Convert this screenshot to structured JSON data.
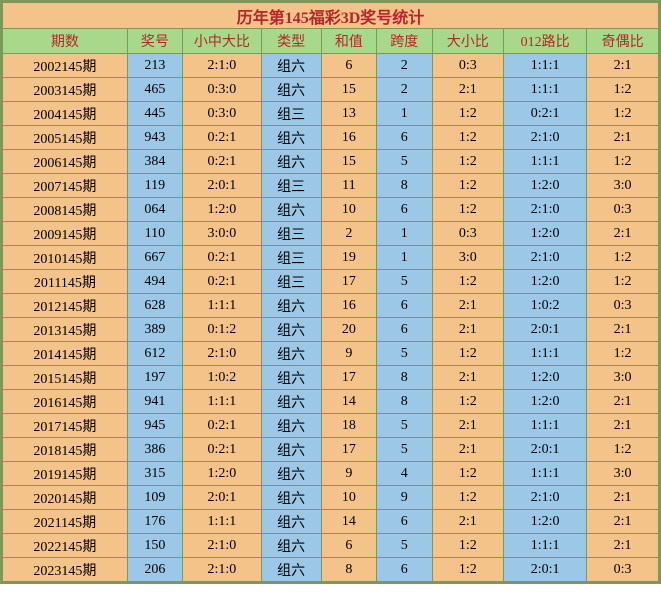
{
  "title": "历年第145福彩3D奖号统计",
  "columns": [
    {
      "label": "期数",
      "key": "period",
      "cls": "col-orange",
      "width": "col-period"
    },
    {
      "label": "奖号",
      "key": "num",
      "cls": "col-blue",
      "width": "col-num"
    },
    {
      "label": "小中大比",
      "key": "ratio1",
      "cls": "col-orange",
      "width": "col-ratio1"
    },
    {
      "label": "类型",
      "key": "type",
      "cls": "col-blue",
      "width": "col-type"
    },
    {
      "label": "和值",
      "key": "sum",
      "cls": "col-orange",
      "width": "col-sum"
    },
    {
      "label": "跨度",
      "key": "span",
      "cls": "col-blue",
      "width": "col-span"
    },
    {
      "label": "大小比",
      "key": "ratio2",
      "cls": "col-orange",
      "width": "col-ratio2"
    },
    {
      "label": "012路比",
      "key": "ratio3",
      "cls": "col-blue",
      "width": "col-ratio3"
    },
    {
      "label": "奇偶比",
      "key": "ratio4",
      "cls": "col-orange",
      "width": "col-ratio4"
    }
  ],
  "rows": [
    {
      "period": "2002145期",
      "num": "213",
      "ratio1": "2:1:0",
      "type": "组六",
      "sum": "6",
      "span": "2",
      "ratio2": "0:3",
      "ratio3": "1:1:1",
      "ratio4": "2:1"
    },
    {
      "period": "2003145期",
      "num": "465",
      "ratio1": "0:3:0",
      "type": "组六",
      "sum": "15",
      "span": "2",
      "ratio2": "2:1",
      "ratio3": "1:1:1",
      "ratio4": "1:2"
    },
    {
      "period": "2004145期",
      "num": "445",
      "ratio1": "0:3:0",
      "type": "组三",
      "sum": "13",
      "span": "1",
      "ratio2": "1:2",
      "ratio3": "0:2:1",
      "ratio4": "1:2"
    },
    {
      "period": "2005145期",
      "num": "943",
      "ratio1": "0:2:1",
      "type": "组六",
      "sum": "16",
      "span": "6",
      "ratio2": "1:2",
      "ratio3": "2:1:0",
      "ratio4": "2:1"
    },
    {
      "period": "2006145期",
      "num": "384",
      "ratio1": "0:2:1",
      "type": "组六",
      "sum": "15",
      "span": "5",
      "ratio2": "1:2",
      "ratio3": "1:1:1",
      "ratio4": "1:2"
    },
    {
      "period": "2007145期",
      "num": "119",
      "ratio1": "2:0:1",
      "type": "组三",
      "sum": "11",
      "span": "8",
      "ratio2": "1:2",
      "ratio3": "1:2:0",
      "ratio4": "3:0"
    },
    {
      "period": "2008145期",
      "num": "064",
      "ratio1": "1:2:0",
      "type": "组六",
      "sum": "10",
      "span": "6",
      "ratio2": "1:2",
      "ratio3": "2:1:0",
      "ratio4": "0:3"
    },
    {
      "period": "2009145期",
      "num": "110",
      "ratio1": "3:0:0",
      "type": "组三",
      "sum": "2",
      "span": "1",
      "ratio2": "0:3",
      "ratio3": "1:2:0",
      "ratio4": "2:1"
    },
    {
      "period": "2010145期",
      "num": "667",
      "ratio1": "0:2:1",
      "type": "组三",
      "sum": "19",
      "span": "1",
      "ratio2": "3:0",
      "ratio3": "2:1:0",
      "ratio4": "1:2"
    },
    {
      "period": "2011145期",
      "num": "494",
      "ratio1": "0:2:1",
      "type": "组三",
      "sum": "17",
      "span": "5",
      "ratio2": "1:2",
      "ratio3": "1:2:0",
      "ratio4": "1:2"
    },
    {
      "period": "2012145期",
      "num": "628",
      "ratio1": "1:1:1",
      "type": "组六",
      "sum": "16",
      "span": "6",
      "ratio2": "2:1",
      "ratio3": "1:0:2",
      "ratio4": "0:3"
    },
    {
      "period": "2013145期",
      "num": "389",
      "ratio1": "0:1:2",
      "type": "组六",
      "sum": "20",
      "span": "6",
      "ratio2": "2:1",
      "ratio3": "2:0:1",
      "ratio4": "2:1"
    },
    {
      "period": "2014145期",
      "num": "612",
      "ratio1": "2:1:0",
      "type": "组六",
      "sum": "9",
      "span": "5",
      "ratio2": "1:2",
      "ratio3": "1:1:1",
      "ratio4": "1:2"
    },
    {
      "period": "2015145期",
      "num": "197",
      "ratio1": "1:0:2",
      "type": "组六",
      "sum": "17",
      "span": "8",
      "ratio2": "2:1",
      "ratio3": "1:2:0",
      "ratio4": "3:0"
    },
    {
      "period": "2016145期",
      "num": "941",
      "ratio1": "1:1:1",
      "type": "组六",
      "sum": "14",
      "span": "8",
      "ratio2": "1:2",
      "ratio3": "1:2:0",
      "ratio4": "2:1"
    },
    {
      "period": "2017145期",
      "num": "945",
      "ratio1": "0:2:1",
      "type": "组六",
      "sum": "18",
      "span": "5",
      "ratio2": "2:1",
      "ratio3": "1:1:1",
      "ratio4": "2:1"
    },
    {
      "period": "2018145期",
      "num": "386",
      "ratio1": "0:2:1",
      "type": "组六",
      "sum": "17",
      "span": "5",
      "ratio2": "2:1",
      "ratio3": "2:0:1",
      "ratio4": "1:2"
    },
    {
      "period": "2019145期",
      "num": "315",
      "ratio1": "1:2:0",
      "type": "组六",
      "sum": "9",
      "span": "4",
      "ratio2": "1:2",
      "ratio3": "1:1:1",
      "ratio4": "3:0"
    },
    {
      "period": "2020145期",
      "num": "109",
      "ratio1": "2:0:1",
      "type": "组六",
      "sum": "10",
      "span": "9",
      "ratio2": "1:2",
      "ratio3": "2:1:0",
      "ratio4": "2:1"
    },
    {
      "period": "2021145期",
      "num": "176",
      "ratio1": "1:1:1",
      "type": "组六",
      "sum": "14",
      "span": "6",
      "ratio2": "2:1",
      "ratio3": "1:2:0",
      "ratio4": "2:1"
    },
    {
      "period": "2022145期",
      "num": "150",
      "ratio1": "2:1:0",
      "type": "组六",
      "sum": "6",
      "span": "5",
      "ratio2": "1:2",
      "ratio3": "1:1:1",
      "ratio4": "2:1"
    },
    {
      "period": "2023145期",
      "num": "206",
      "ratio1": "2:1:0",
      "type": "组六",
      "sum": "8",
      "span": "6",
      "ratio2": "1:2",
      "ratio3": "2:0:1",
      "ratio4": "0:3"
    }
  ]
}
